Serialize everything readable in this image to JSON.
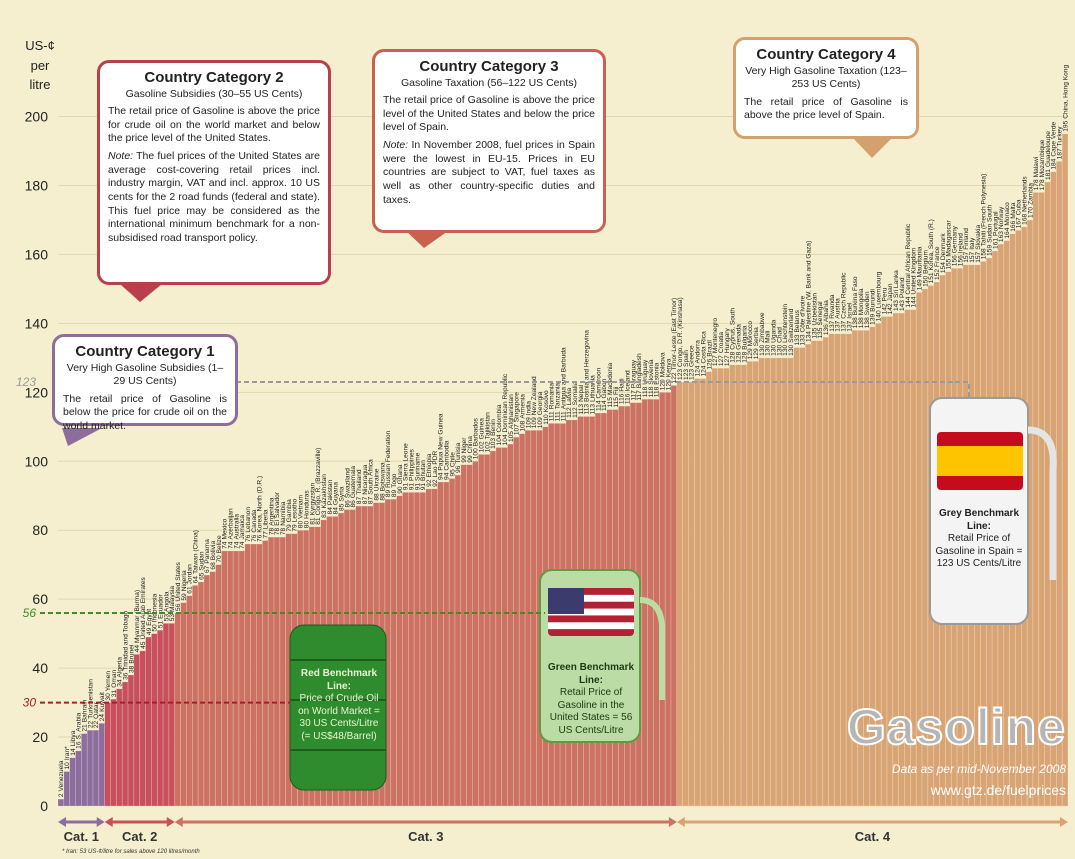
{
  "chart_data": {
    "type": "bar",
    "ylabel_lines": [
      "US-¢",
      "per",
      "litre"
    ],
    "ylim": [
      0,
      228
    ],
    "yticks": [
      0,
      20,
      40,
      60,
      80,
      100,
      120,
      140,
      160,
      180,
      200
    ],
    "grid": true,
    "series": [
      {
        "name": "Cat. 1",
        "color": "#8c6d9c",
        "categories": [
          "Venezuela",
          "Iran*",
          "Libya",
          "S. Arabia",
          "Bahrain",
          "Turkmenistan",
          "Qatar",
          "Kuwait"
        ],
        "values": [
          2,
          10,
          14,
          16,
          21,
          22,
          22,
          24
        ]
      },
      {
        "name": "Cat. 2",
        "color": "#c8505c",
        "categories": [
          "Yemen",
          "Oman",
          "Algeria",
          "Trinidad and Tobago",
          "Brunei",
          "Myanmar (Burma)",
          "United Arab Emirates",
          "Egypt",
          "Indonesia",
          "Ecuador",
          "Angola",
          "Malaysia"
        ],
        "values": [
          30,
          31,
          34,
          36,
          38,
          44,
          45,
          49,
          50,
          51,
          53,
          53
        ]
      },
      {
        "name": "Cat. 3",
        "color": "#cc7262",
        "categories": [
          "United States",
          "Nigeria",
          "Jordan",
          "Taiwan (China)",
          "Sudan",
          "Panama",
          "Bolivia",
          "Belize",
          "Mexico",
          "Azerbaijan",
          "Australia",
          "Jamaica",
          "Lebanon",
          "Canada",
          "Korea, North (D.R.)",
          "Liberia",
          "Argentina",
          "El Salvador",
          "Namibia",
          "Gambia",
          "Lesotho",
          "Vietnam",
          "Honduras",
          "Kyrgyzstan",
          "Congo, R. (Brazzaville)",
          "Kazakhstan",
          "Pakistan",
          "Guyana",
          "Syria",
          "Swaziland",
          "Guatemala",
          "Thailand",
          "Nicaragua",
          "South Africa",
          "Ukraine",
          "Botswana",
          "Russian Federation",
          "Togo",
          "Ghana",
          "Sierra Leone",
          "Philippines",
          "Suriname",
          "Bhutan",
          "Ethiopia",
          "Lao PDR",
          "Papua New Guinea",
          "Cambodia",
          "Chile",
          "Tunisia",
          "Niger",
          "China",
          "Barbados",
          "Guinea",
          "Tajikistan",
          "Benin",
          "Colombia",
          "Dominican Republic",
          "Afghanistan",
          "Singapore",
          "Armenia",
          "India",
          "New Zealand",
          "Georgia",
          "Kosovo",
          "Romania",
          "Tanzania",
          "Antigua and Barbuda",
          "Latvia",
          "Somalia",
          "Nepal",
          "Bosnia and Herzegovina",
          "Lithuania",
          "Cameroon",
          "Gabon",
          "Macedonia",
          "Fiji",
          "Haiti",
          "Iceland",
          "Paraguay",
          "Bangladesh",
          "Uruguay",
          "Slovenia",
          "Estonia",
          "Moldova",
          "Kenya",
          "Timor-Leste (East Timor)"
        ],
        "values": [
          56,
          59,
          61,
          64,
          65,
          67,
          68,
          70,
          74,
          74,
          74,
          74,
          76,
          76,
          76,
          77,
          78,
          78,
          78,
          79,
          79,
          80,
          80,
          81,
          81,
          83,
          84,
          84,
          85,
          86,
          86,
          87,
          87,
          87,
          88,
          88,
          89,
          89,
          90,
          91,
          91,
          91,
          91,
          92,
          92,
          94,
          94,
          95,
          96,
          99,
          99,
          100,
          102,
          102,
          103,
          104,
          104,
          105,
          107,
          108,
          109,
          109,
          109,
          110,
          111,
          111,
          111,
          112,
          112,
          113,
          113,
          113,
          114,
          114,
          115,
          115,
          116,
          116,
          117,
          117,
          118,
          118,
          118,
          120,
          120,
          122
        ]
      },
      {
        "name": "Cat. 4",
        "color": "#d9a474",
        "categories": [
          "Congo, D.R. (Kinshasa)",
          "Spain",
          "Greece",
          "Andorra",
          "Costa Rica",
          "Brazil",
          "Montenegro",
          "Croatia",
          "Hungary",
          "Cyprus, South",
          "Grenada",
          "Bulgaria",
          "Morocco",
          "Serbia",
          "Zimbabwe",
          "Mali",
          "Uganda",
          "Chad",
          "Liechtenstein",
          "Switzerland",
          "Belarus",
          "Côte d'Ivoire",
          "Palestine (W. Bank and Gaza)",
          "Uzbekistan",
          "Senegal",
          "Albania",
          "Rwanda",
          "Austria",
          "Czech Republic",
          "Israel",
          "Burkina Faso",
          "Mongolia",
          "Sweden",
          "Burundi",
          "Luxembourg",
          "Peru",
          "Japan",
          "Sri Lanka",
          "Poland",
          "Central African Republic",
          "United Kingdom",
          "Mauritania",
          "Belgium",
          "Korea, South (R.)",
          "France",
          "Denmark",
          "Madagascar",
          "Germany",
          "Ireland",
          "Finland",
          "Italy",
          "Slovakia",
          "Tahiti (French Polynesia)",
          "Sudan South",
          "Portugal",
          "Norway",
          "Monaco",
          "Malta",
          "Cuba",
          "Netherlands",
          "Zambia",
          "Malawi",
          "Mozambique",
          "Guadeloupe",
          "Cape Verde",
          "Turkey",
          "China, Hong Kong"
        ],
        "values": [
          123,
          123,
          123,
          124,
          124,
          126,
          127,
          127,
          127,
          128,
          128,
          128,
          129,
          129,
          130,
          130,
          130,
          130,
          130,
          130,
          133,
          133,
          134,
          135,
          135,
          136,
          137,
          137,
          137,
          137,
          138,
          138,
          138,
          139,
          140,
          142,
          142,
          143,
          143,
          144,
          144,
          149,
          150,
          151,
          152,
          154,
          155,
          156,
          156,
          157,
          157,
          157,
          158,
          159,
          161,
          163,
          164,
          166,
          167,
          168,
          170,
          178,
          178,
          181,
          184,
          187,
          195
        ]
      }
    ],
    "benchmarks": [
      {
        "value": 30,
        "color": "#a3202c"
      },
      {
        "value": 56,
        "color": "#3d8b2b"
      },
      {
        "value": 123,
        "color": "#9a9a9a"
      }
    ],
    "callouts": [
      {
        "title": "Country Category 1",
        "subtitle": "Very High Gasoline Subsidies (1–29 US Cents)",
        "text": "The retail price of Gasoline is below the price for crude oil on the world market."
      },
      {
        "title": "Country Category 2",
        "subtitle": "Gasoline Subsidies (30–55 US Cents)",
        "text": "The retail price of Gasoline is above the price for crude oil on the world market and below the price level of the United States.",
        "note": {
          "label": "Note:",
          "text": "The fuel prices of the United States are average cost-covering retail prices incl. industry margin, VAT and incl. approx. 10 US cents for the 2 road funds (federal and state). This fuel price may be considered as the international minimum benchmark for a non-subsidised road transport policy."
        }
      },
      {
        "title": "Country Category 3",
        "subtitle": "Gasoline Taxation (56–122 US Cents)",
        "text": "The retail price of Gasoline is above the price level of the United States and below the price level of Spain.",
        "note": {
          "label": "Note:",
          "text": "In November 2008, fuel prices in Spain were the lowest in EU-15. Prices in EU countries are subject to VAT, fuel taxes as well as other country-specific duties and taxes."
        }
      },
      {
        "title": "Country Category 4",
        "subtitle": "Very High Gasoline Taxation (123–253 US Cents)",
        "text": "The retail price of Gasoline is above the price level of Spain."
      }
    ],
    "benchmark_notes": [
      {
        "title": "Red Benchmark Line:",
        "text": "Price of Crude Oil on World Market = 30 US Cents/Litre (= US$48/Barrel)"
      },
      {
        "title": "Green Benchmark Line:",
        "text": "Retail Price of Gasoline in the United States = 56 US Cents/Litre"
      },
      {
        "title": "Grey Benchmark Line:",
        "text": "Retail Price of Gasoline in Spain = 123 US Cents/Litre"
      }
    ],
    "brand": "Gasoline",
    "date_note": "Data as per mid-November 2008",
    "url": "www.gtz.de/fuelprices",
    "footnote": "* Iran: 53 US-¢/litre for sales above 120 litres/month"
  }
}
